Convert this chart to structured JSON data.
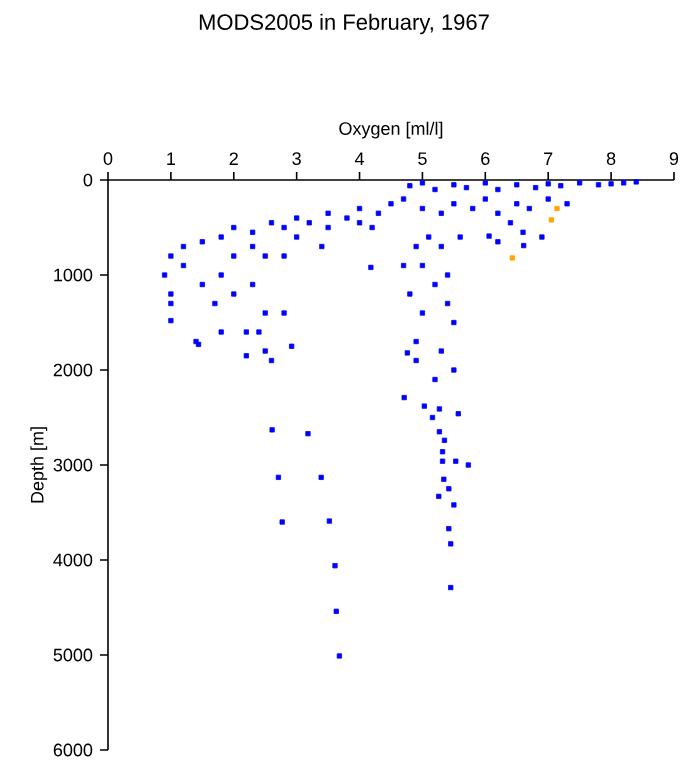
{
  "chart_data": {
    "type": "scatter",
    "title": "MODS2005 in February, 1967",
    "xlabel": "Oxygen [ml/l]",
    "ylabel": "Depth [m]",
    "xlim": [
      0,
      9
    ],
    "xticks": [
      0,
      1,
      2,
      3,
      4,
      5,
      6,
      7,
      8,
      9
    ],
    "ylim": [
      6000,
      0
    ],
    "yticks": [
      0,
      1000,
      2000,
      3000,
      4000,
      5000,
      6000
    ],
    "grid": false,
    "marker": "square",
    "series": [
      {
        "color": "#0000ff",
        "x": [
          8.4,
          8.2,
          8.0,
          7.8,
          7.5,
          7.2,
          7.0,
          6.8,
          6.5,
          6.2,
          6.0,
          5.7,
          5.5,
          5.2,
          5.0,
          4.8,
          7.3,
          7.0,
          6.7,
          6.5,
          6.2,
          6.0,
          5.8,
          5.5,
          5.3,
          5.0,
          4.7,
          4.5,
          4.3,
          4.0,
          3.8,
          3.5,
          3.2,
          3.0,
          2.8,
          2.6,
          2.3,
          2.0,
          1.8,
          1.5,
          1.2,
          1.0,
          0.9,
          1.0,
          1.0,
          1.2,
          1.5,
          1.8,
          2.0,
          2.3,
          2.5,
          1.7,
          2.0,
          2.3,
          2.5,
          2.4,
          2.5,
          2.6,
          1.4,
          1.8,
          2.2,
          2.8,
          3.0,
          3.5,
          4.0,
          4.2,
          3.4,
          2.8,
          6.4,
          6.6,
          6.9,
          5.6,
          6.2,
          6.06,
          6.61,
          4.18,
          4.9,
          5.1,
          5.3,
          4.7,
          5.0,
          5.4,
          5.2,
          4.8,
          5.4,
          5.0,
          5.5,
          4.9,
          5.3,
          4.9,
          5.5,
          5.2,
          4.76,
          4.71,
          5.03,
          5.27,
          5.16,
          5.57,
          5.27,
          5.35,
          5.32,
          5.32,
          5.53,
          5.73,
          5.34,
          5.26,
          5.42,
          5.5,
          5.42,
          5.45,
          5.45,
          2.2,
          2.92,
          1.44,
          1.0,
          2.61,
          3.18,
          2.71,
          3.39,
          2.77,
          3.52,
          3.61,
          3.63,
          3.68
        ],
        "values": [
          20,
          30,
          40,
          50,
          30,
          60,
          40,
          80,
          50,
          100,
          30,
          80,
          50,
          100,
          30,
          60,
          250,
          200,
          300,
          250,
          350,
          200,
          300,
          250,
          350,
          300,
          200,
          250,
          350,
          300,
          400,
          350,
          450,
          400,
          500,
          450,
          550,
          500,
          600,
          650,
          700,
          800,
          1000,
          1200,
          1300,
          900,
          1100,
          1000,
          800,
          700,
          800,
          1300,
          1200,
          1100,
          1400,
          1600,
          1800,
          1900,
          1700,
          1600,
          1600,
          1400,
          600,
          500,
          450,
          500,
          700,
          800,
          450,
          550,
          600,
          600,
          650,
          590,
          690,
          920,
          700,
          600,
          700,
          900,
          900,
          1000,
          1100,
          1200,
          1300,
          1400,
          1500,
          1700,
          1800,
          1900,
          2000,
          2100,
          1820,
          2290,
          2380,
          2410,
          2500,
          2460,
          2650,
          2740,
          2860,
          2960,
          2960,
          3000,
          3150,
          3330,
          3250,
          3420,
          3670,
          3830,
          4290,
          1850,
          1750,
          1730,
          1480,
          2630,
          2670,
          3130,
          3130,
          3600,
          3590,
          4060,
          4540,
          5010
        ]
      },
      {
        "color": "#ffa500",
        "x": [
          7.14,
          7.05,
          6.43
        ],
        "values": [
          300,
          420,
          820
        ]
      }
    ]
  }
}
